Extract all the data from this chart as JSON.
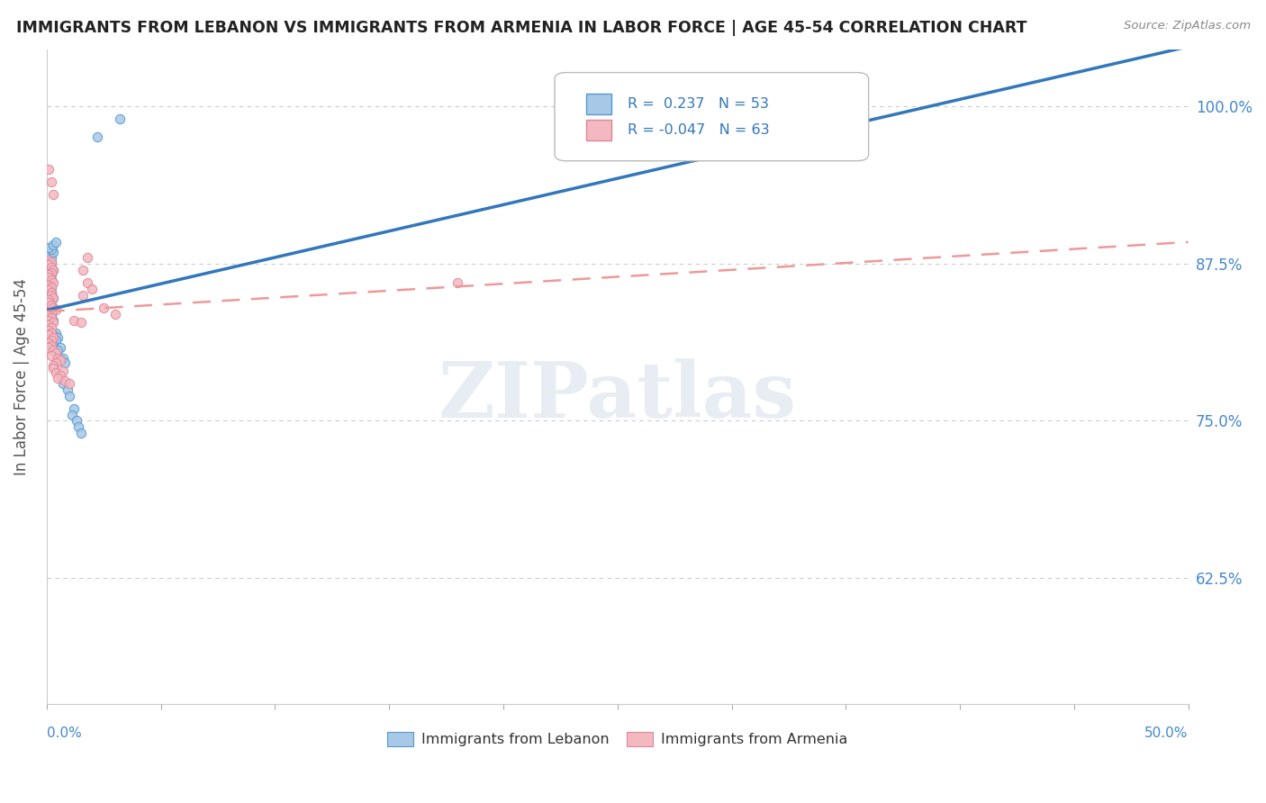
{
  "title": "IMMIGRANTS FROM LEBANON VS IMMIGRANTS FROM ARMENIA IN LABOR FORCE | AGE 45-54 CORRELATION CHART",
  "source": "Source: ZipAtlas.com",
  "ylabel": "In Labor Force | Age 45-54",
  "ylabel_ticks": [
    0.625,
    0.75,
    0.875,
    1.0
  ],
  "ylabel_tick_labels": [
    "62.5%",
    "75.0%",
    "87.5%",
    "100.0%"
  ],
  "xmin": 0.0,
  "xmax": 0.5,
  "ymin": 0.525,
  "ymax": 1.045,
  "lebanon_color": "#a8c8e8",
  "armenia_color": "#f4b8c0",
  "lebanon_edge_color": "#5599cc",
  "armenia_edge_color": "#dd8899",
  "lebanon_R": 0.237,
  "lebanon_N": 53,
  "armenia_R": -0.047,
  "armenia_N": 63,
  "lebanon_trend_color": "#3377bb",
  "armenia_trend_color": "#ee9999",
  "watermark_text": "ZIPatlas",
  "legend_label_lebanon": "Immigrants from Lebanon",
  "legend_label_armenia": "Immigrants from Armenia",
  "lebanon_x": [
    0.001,
    0.002,
    0.001,
    0.002,
    0.003,
    0.001,
    0.002,
    0.001,
    0.002,
    0.001,
    0.001,
    0.002,
    0.001,
    0.002,
    0.001,
    0.003,
    0.002,
    0.001,
    0.002,
    0.003,
    0.002,
    0.001,
    0.002,
    0.001,
    0.003,
    0.002,
    0.001,
    0.003,
    0.002,
    0.001,
    0.004,
    0.003,
    0.005,
    0.004,
    0.003,
    0.006,
    0.005,
    0.007,
    0.006,
    0.008,
    0.007,
    0.009,
    0.01,
    0.012,
    0.011,
    0.013,
    0.014,
    0.015,
    0.003,
    0.004,
    0.022,
    0.032,
    0.32
  ],
  "lebanon_y": [
    0.878,
    0.876,
    0.874,
    0.872,
    0.87,
    0.868,
    0.866,
    0.864,
    0.862,
    0.86,
    0.858,
    0.856,
    0.854,
    0.852,
    0.85,
    0.848,
    0.846,
    0.844,
    0.842,
    0.84,
    0.838,
    0.836,
    0.834,
    0.832,
    0.83,
    0.88,
    0.882,
    0.884,
    0.886,
    0.888,
    0.82,
    0.818,
    0.816,
    0.814,
    0.81,
    0.808,
    0.806,
    0.8,
    0.798,
    0.796,
    0.78,
    0.775,
    0.77,
    0.76,
    0.755,
    0.75,
    0.745,
    0.74,
    0.89,
    0.892,
    0.976,
    0.99,
    0.975
  ],
  "armenia_x": [
    0.001,
    0.002,
    0.001,
    0.002,
    0.003,
    0.002,
    0.001,
    0.001,
    0.002,
    0.003,
    0.001,
    0.002,
    0.001,
    0.002,
    0.002,
    0.003,
    0.001,
    0.001,
    0.002,
    0.003,
    0.004,
    0.002,
    0.001,
    0.002,
    0.001,
    0.003,
    0.001,
    0.002,
    0.001,
    0.002,
    0.001,
    0.003,
    0.002,
    0.001,
    0.002,
    0.001,
    0.003,
    0.004,
    0.002,
    0.005,
    0.006,
    0.004,
    0.003,
    0.003,
    0.007,
    0.004,
    0.006,
    0.005,
    0.008,
    0.01,
    0.012,
    0.015,
    0.018,
    0.02,
    0.016,
    0.025,
    0.03,
    0.016,
    0.018,
    0.18,
    0.003,
    0.002,
    0.001
  ],
  "armenia_y": [
    0.878,
    0.876,
    0.874,
    0.872,
    0.87,
    0.868,
    0.866,
    0.864,
    0.862,
    0.86,
    0.858,
    0.856,
    0.854,
    0.852,
    0.85,
    0.848,
    0.846,
    0.844,
    0.842,
    0.84,
    0.838,
    0.836,
    0.834,
    0.832,
    0.83,
    0.828,
    0.826,
    0.824,
    0.822,
    0.82,
    0.818,
    0.816,
    0.814,
    0.812,
    0.81,
    0.808,
    0.806,
    0.804,
    0.802,
    0.8,
    0.798,
    0.796,
    0.794,
    0.792,
    0.79,
    0.788,
    0.786,
    0.784,
    0.782,
    0.78,
    0.83,
    0.828,
    0.86,
    0.855,
    0.85,
    0.84,
    0.835,
    0.87,
    0.88,
    0.86,
    0.93,
    0.94,
    0.95
  ]
}
